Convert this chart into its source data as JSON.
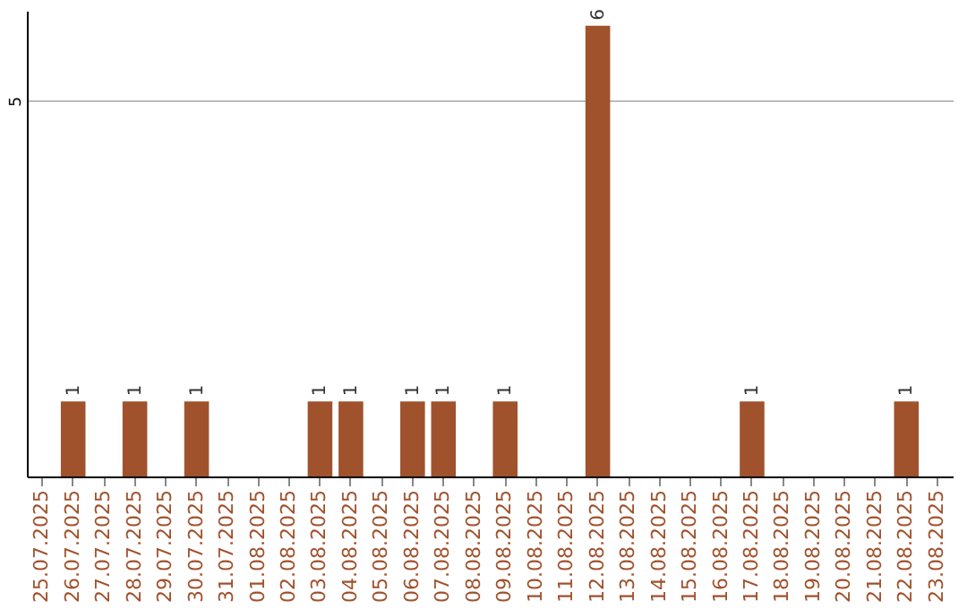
{
  "chart_data": {
    "type": "bar",
    "categories": [
      "25.07.2025",
      "26.07.2025",
      "27.07.2025",
      "28.07.2025",
      "29.07.2025",
      "30.07.2025",
      "31.07.2025",
      "01.08.2025",
      "02.08.2025",
      "03.08.2025",
      "04.08.2025",
      "05.08.2025",
      "06.08.2025",
      "07.08.2025",
      "08.08.2025",
      "09.08.2025",
      "10.08.2025",
      "11.08.2025",
      "12.08.2025",
      "13.08.2025",
      "14.08.2025",
      "15.08.2025",
      "16.08.2025",
      "17.08.2025",
      "18.08.2025",
      "19.08.2025",
      "20.08.2025",
      "21.08.2025",
      "22.08.2025",
      "23.08.2025"
    ],
    "values": [
      0,
      1,
      0,
      1,
      0,
      1,
      0,
      0,
      0,
      1,
      1,
      0,
      1,
      1,
      0,
      1,
      0,
      0,
      6,
      0,
      0,
      0,
      0,
      1,
      0,
      0,
      0,
      0,
      1,
      0
    ],
    "value_labels": [
      null,
      "1",
      null,
      "1",
      null,
      "1",
      null,
      null,
      null,
      "1",
      "1",
      null,
      "1",
      "1",
      null,
      "1",
      null,
      null,
      "6",
      null,
      null,
      null,
      null,
      "1",
      null,
      null,
      null,
      null,
      "1",
      null
    ],
    "color": "#a0522d",
    "ylim": [
      0,
      6.2
    ],
    "yticks": [
      5
    ],
    "grid": "y"
  }
}
